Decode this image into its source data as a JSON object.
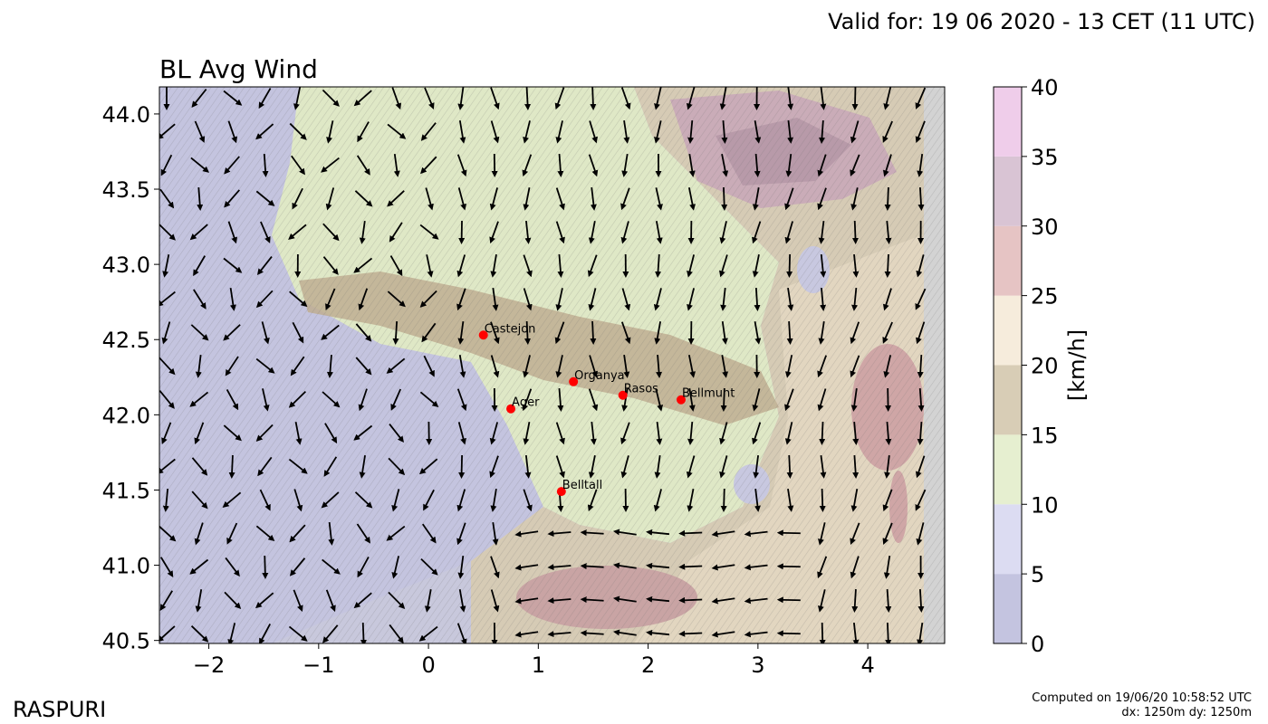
{
  "header": {
    "valid_for": "Valid for: 19 06 2020 - 13 CET (11 UTC)",
    "title": "BL Avg Wind"
  },
  "footer": {
    "brand": "RASPURI",
    "computed_line1": "Computed on 19/06/20 10:58:52 UTC",
    "computed_line2": "dx: 1250m dy: 1250m"
  },
  "map": {
    "x_range": [
      -2.45,
      4.7
    ],
    "y_range": [
      40.48,
      44.18
    ],
    "x_ticks": [
      -2,
      -1,
      0,
      1,
      2,
      3,
      4
    ],
    "x_tick_labels": [
      "−2",
      "−1",
      "0",
      "1",
      "2",
      "3",
      "4"
    ],
    "y_ticks": [
      40.5,
      41.0,
      41.5,
      42.0,
      42.5,
      43.0,
      43.5,
      44.0
    ],
    "y_tick_labels": [
      "40.5",
      "41.0",
      "41.5",
      "42.0",
      "42.5",
      "43.0",
      "43.5",
      "44.0"
    ],
    "places": [
      {
        "name": "Castejon",
        "lon": 0.5,
        "lat": 42.53
      },
      {
        "name": "Organya",
        "lon": 1.32,
        "lat": 42.22
      },
      {
        "name": "Rasos",
        "lon": 1.77,
        "lat": 42.13
      },
      {
        "name": "Bellmunt",
        "lon": 2.3,
        "lat": 42.1
      },
      {
        "name": "Ager",
        "lon": 0.75,
        "lat": 42.04
      },
      {
        "name": "Belltall",
        "lon": 1.21,
        "lat": 41.49
      }
    ],
    "place_color": "#ff0000"
  },
  "colorbar": {
    "label": "[km/h]",
    "ticks": [
      "0",
      "5",
      "10",
      "15",
      "20",
      "25",
      "30",
      "35",
      "40"
    ],
    "colors": [
      "#c4c4e0",
      "#dcdcf2",
      "#e6efd0",
      "#d8cdb6",
      "#f6ecdc",
      "#e6c4c4",
      "#d9c4d4",
      "#efcdea"
    ]
  }
}
